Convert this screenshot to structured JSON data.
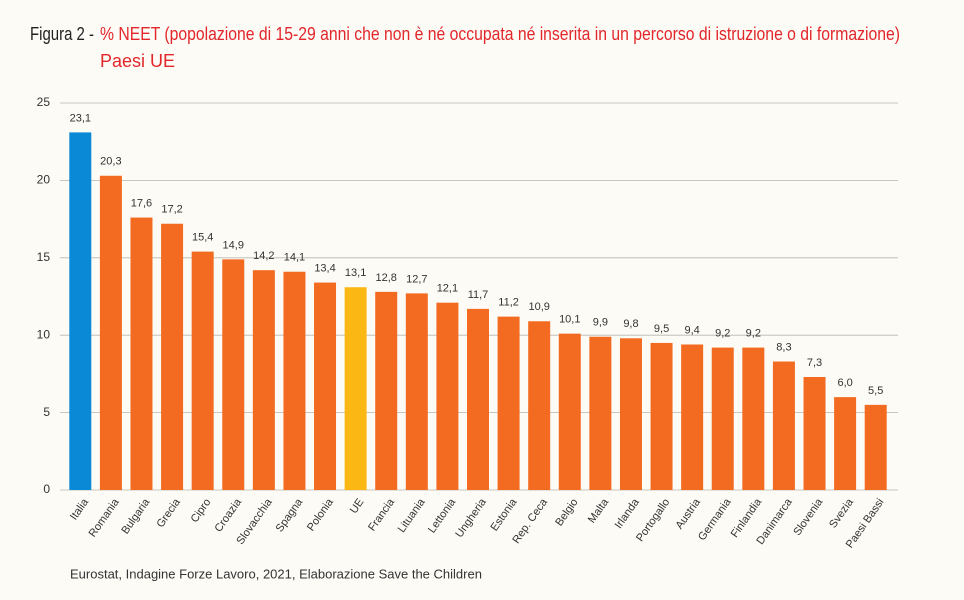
{
  "chart_data": {
    "type": "bar",
    "title_prefix": "Figura 2 -",
    "title": "% NEET (popolazione di 15-29 anni che non è né occupata né inserita in un percorso di istruzione o di formazione)",
    "subtitle": "Paesi UE",
    "source": "Eurostat, Indagine Forze Lavoro, 2021, Elaborazione Save the Children",
    "categories": [
      "Italia",
      "Romania",
      "Bulgaria",
      "Grecia",
      "Cipro",
      "Croazia",
      "Slovacchia",
      "Spagna",
      "Polonia",
      "UE",
      "Francia",
      "Lituania",
      "Lettonia",
      "Ungheria",
      "Estonia",
      "Rep. Ceca",
      "Belgio",
      "Malta",
      "Irlanda",
      "Portogallo",
      "Austria",
      "Germania",
      "Finlandia",
      "Danimarca",
      "Slovenia",
      "Svezia",
      "Paesi Bassi"
    ],
    "values": [
      23.1,
      20.3,
      17.6,
      17.2,
      15.4,
      14.9,
      14.2,
      14.1,
      13.4,
      13.1,
      12.8,
      12.7,
      12.1,
      11.7,
      11.2,
      10.9,
      10.1,
      9.9,
      9.8,
      9.5,
      9.4,
      9.2,
      9.2,
      8.3,
      7.3,
      6.0,
      5.5
    ],
    "value_labels": [
      "23,1",
      "20,3",
      "17,6",
      "17,2",
      "15,4",
      "14,9",
      "14,2",
      "14,1",
      "13,4",
      "13,1",
      "12,8",
      "12,7",
      "12,1",
      "11,7",
      "11,2",
      "10,9",
      "10,1",
      "9,9",
      "9,8",
      "9,5",
      "9,4",
      "9,2",
      "9,2",
      "8,3",
      "7,3",
      "6,0",
      "5,5"
    ],
    "colors": [
      "#0a8ad6",
      "#f26b21",
      "#f26b21",
      "#f26b21",
      "#f26b21",
      "#f26b21",
      "#f26b21",
      "#f26b21",
      "#f26b21",
      "#fbb714",
      "#f26b21",
      "#f26b21",
      "#f26b21",
      "#f26b21",
      "#f26b21",
      "#f26b21",
      "#f26b21",
      "#f26b21",
      "#f26b21",
      "#f26b21",
      "#f26b21",
      "#f26b21",
      "#f26b21",
      "#f26b21",
      "#f26b21",
      "#f26b21",
      "#f26b21"
    ],
    "ylim": [
      0,
      25
    ],
    "yticks": [
      0,
      5,
      10,
      15,
      20,
      25
    ],
    "grid": true
  }
}
